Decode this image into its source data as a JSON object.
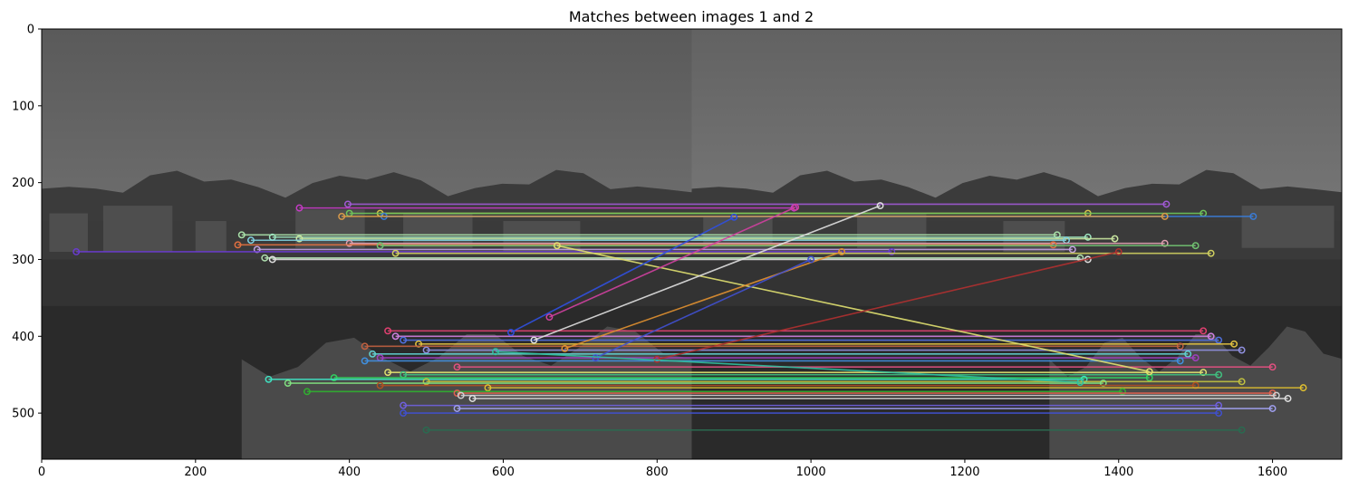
{
  "chart_data": {
    "type": "image",
    "title": "Matches between images 1 and 2",
    "xlabel": "",
    "ylabel": "",
    "xlim": [
      0,
      1690
    ],
    "ylim": [
      560,
      0
    ],
    "x_ticks": [
      0,
      200,
      400,
      600,
      800,
      1000,
      1200,
      1400,
      1600
    ],
    "y_ticks": [
      0,
      100,
      200,
      300,
      400,
      500
    ],
    "image_split_x": 845,
    "description_colors": {
      "sky_top": "#5e5e5e",
      "sky_mid": "#6c6c6c",
      "land": "#3a3a3a",
      "water": "#2a2a2a"
    },
    "matches": [
      {
        "x1": 398,
        "y1": 228,
        "x2": 1462,
        "y2": 228,
        "color": "#a25ad6"
      },
      {
        "x1": 335,
        "y1": 233,
        "x2": 978,
        "y2": 233,
        "color": "#c63bc6"
      },
      {
        "x1": 440,
        "y1": 240,
        "x2": 1360,
        "y2": 240,
        "color": "#d4c24a"
      },
      {
        "x1": 400,
        "y1": 240,
        "x2": 1510,
        "y2": 240,
        "color": "#6fc45a"
      },
      {
        "x1": 445,
        "y1": 244,
        "x2": 1575,
        "y2": 244,
        "color": "#3a7bd5"
      },
      {
        "x1": 390,
        "y1": 244,
        "x2": 1460,
        "y2": 244,
        "color": "#d89a4a"
      },
      {
        "x1": 260,
        "y1": 268,
        "x2": 1320,
        "y2": 268,
        "color": "#a8e0a8"
      },
      {
        "x1": 300,
        "y1": 271,
        "x2": 1360,
        "y2": 271,
        "color": "#9ee6c0"
      },
      {
        "x1": 335,
        "y1": 273,
        "x2": 1395,
        "y2": 273,
        "color": "#c9e6a0"
      },
      {
        "x1": 272,
        "y1": 275,
        "x2": 1332,
        "y2": 275,
        "color": "#7fd0e0"
      },
      {
        "x1": 400,
        "y1": 279,
        "x2": 1460,
        "y2": 279,
        "color": "#e0a0b0"
      },
      {
        "x1": 255,
        "y1": 281,
        "x2": 1315,
        "y2": 281,
        "color": "#e07040"
      },
      {
        "x1": 440,
        "y1": 282,
        "x2": 1500,
        "y2": 282,
        "color": "#70c070"
      },
      {
        "x1": 280,
        "y1": 287,
        "x2": 1340,
        "y2": 287,
        "color": "#c0a0e0"
      },
      {
        "x1": 45,
        "y1": 290,
        "x2": 1105,
        "y2": 290,
        "color": "#6a3bd0"
      },
      {
        "x1": 460,
        "y1": 292,
        "x2": 1520,
        "y2": 292,
        "color": "#d0d060"
      },
      {
        "x1": 290,
        "y1": 298,
        "x2": 1350,
        "y2": 298,
        "color": "#b0e0b0"
      },
      {
        "x1": 300,
        "y1": 300,
        "x2": 1360,
        "y2": 300,
        "color": "#e0e0e0"
      },
      {
        "x1": 450,
        "y1": 393,
        "x2": 1510,
        "y2": 393,
        "color": "#e04070"
      },
      {
        "x1": 460,
        "y1": 400,
        "x2": 1520,
        "y2": 400,
        "color": "#d080e0"
      },
      {
        "x1": 470,
        "y1": 405,
        "x2": 1530,
        "y2": 405,
        "color": "#5070e0"
      },
      {
        "x1": 490,
        "y1": 410,
        "x2": 1550,
        "y2": 410,
        "color": "#e0c040"
      },
      {
        "x1": 420,
        "y1": 413,
        "x2": 1480,
        "y2": 413,
        "color": "#c06040"
      },
      {
        "x1": 500,
        "y1": 418,
        "x2": 1560,
        "y2": 418,
        "color": "#9090e0"
      },
      {
        "x1": 430,
        "y1": 423,
        "x2": 1490,
        "y2": 423,
        "color": "#60d0d0"
      },
      {
        "x1": 440,
        "y1": 428,
        "x2": 1500,
        "y2": 428,
        "color": "#a040c0"
      },
      {
        "x1": 420,
        "y1": 432,
        "x2": 1480,
        "y2": 432,
        "color": "#4090e0"
      },
      {
        "x1": 540,
        "y1": 440,
        "x2": 1600,
        "y2": 440,
        "color": "#e05080"
      },
      {
        "x1": 450,
        "y1": 447,
        "x2": 1510,
        "y2": 447,
        "color": "#e0e070"
      },
      {
        "x1": 470,
        "y1": 450,
        "x2": 1530,
        "y2": 450,
        "color": "#40c080"
      },
      {
        "x1": 380,
        "y1": 454,
        "x2": 1440,
        "y2": 454,
        "color": "#30d060"
      },
      {
        "x1": 295,
        "y1": 456,
        "x2": 1355,
        "y2": 456,
        "color": "#40e0c0"
      },
      {
        "x1": 500,
        "y1": 459,
        "x2": 1560,
        "y2": 459,
        "color": "#c0c040"
      },
      {
        "x1": 320,
        "y1": 461,
        "x2": 1380,
        "y2": 461,
        "color": "#80e080"
      },
      {
        "x1": 440,
        "y1": 464,
        "x2": 1500,
        "y2": 464,
        "color": "#b05020"
      },
      {
        "x1": 580,
        "y1": 467,
        "x2": 1640,
        "y2": 467,
        "color": "#e0c030"
      },
      {
        "x1": 345,
        "y1": 472,
        "x2": 1405,
        "y2": 472,
        "color": "#30b030"
      },
      {
        "x1": 540,
        "y1": 474,
        "x2": 1600,
        "y2": 474,
        "color": "#e06050"
      },
      {
        "x1": 545,
        "y1": 477,
        "x2": 1605,
        "y2": 477,
        "color": "#d0d0d0"
      },
      {
        "x1": 560,
        "y1": 481,
        "x2": 1620,
        "y2": 481,
        "color": "#e0e0e0"
      },
      {
        "x1": 470,
        "y1": 490,
        "x2": 1530,
        "y2": 490,
        "color": "#7060e0"
      },
      {
        "x1": 540,
        "y1": 494,
        "x2": 1600,
        "y2": 494,
        "color": "#a0a0f0"
      },
      {
        "x1": 470,
        "y1": 500,
        "x2": 1530,
        "y2": 500,
        "color": "#4050d0"
      },
      {
        "x1": 500,
        "y1": 522,
        "x2": 1560,
        "y2": 522,
        "color": "#2a6a50"
      },
      {
        "x1": 670,
        "y1": 282,
        "x2": 1440,
        "y2": 446,
        "color": "#e0e070"
      },
      {
        "x1": 660,
        "y1": 375,
        "x2": 980,
        "y2": 232,
        "color": "#d040a0"
      },
      {
        "x1": 610,
        "y1": 395,
        "x2": 900,
        "y2": 245,
        "color": "#3050e0"
      },
      {
        "x1": 640,
        "y1": 405,
        "x2": 1090,
        "y2": 230,
        "color": "#e0e0e0"
      },
      {
        "x1": 680,
        "y1": 416,
        "x2": 1040,
        "y2": 290,
        "color": "#e09030"
      },
      {
        "x1": 720,
        "y1": 428,
        "x2": 1000,
        "y2": 300,
        "color": "#4050d0"
      },
      {
        "x1": 800,
        "y1": 430,
        "x2": 1400,
        "y2": 290,
        "color": "#b03030"
      },
      {
        "x1": 590,
        "y1": 420,
        "x2": 1350,
        "y2": 460,
        "color": "#30c0a0"
      }
    ]
  }
}
